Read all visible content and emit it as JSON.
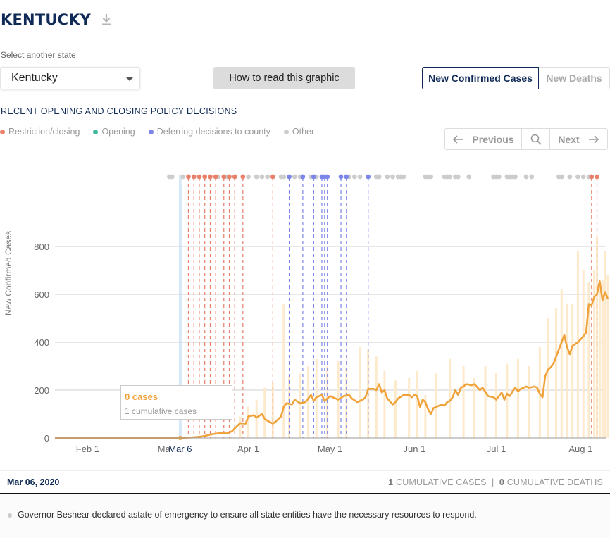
{
  "state": {
    "title": "KENTUCKY",
    "select_label": "Select another state",
    "selected": "Kentucky"
  },
  "how_to_read_label": "How to read this graphic",
  "metric_tabs": {
    "active": "New Confirmed Cases",
    "inactive": "New Deaths"
  },
  "policy": {
    "heading": "RECENT OPENING AND CLOSING POLICY DECISIONS",
    "legend": [
      {
        "label": "Restriction/closing",
        "color": "#e8806a"
      },
      {
        "label": "Opening",
        "color": "#3fb89a"
      },
      {
        "label": "Deferring decisions to county",
        "color": "#7c85e8"
      },
      {
        "label": "Other",
        "color": "#cccccc"
      }
    ]
  },
  "nav": {
    "previous": "Previous",
    "next": "Next"
  },
  "icons": {
    "download": "download-icon",
    "search": "search-icon",
    "prev": "arrow-left-icon",
    "next": "arrow-right-icon",
    "caret": "chevron-down-icon"
  },
  "colors": {
    "accent": "#0f2a56",
    "cases_line": "#f0a33b",
    "cases_bar": "#fde9cc",
    "highlight_band": "#d7e8f6"
  },
  "tooltip": {
    "value": "0 cases",
    "cumulative": "1 cumulative cases"
  },
  "selected_date": "Mar 06, 2020",
  "stats": {
    "cases_num": "1",
    "cases_label": "CUMULATIVE CASES",
    "deaths_num": "0",
    "deaths_label": "CUMULATIVE DEATHS"
  },
  "event": {
    "text": "Governor Beshear declared astate of emergency to ensure all state entities have the necessary resources to respond."
  },
  "chart_data": {
    "type": "line",
    "ylabel": "New Confirmed Cases",
    "ylim": [
      0,
      850
    ],
    "yticks": [
      0,
      200,
      400,
      600,
      800
    ],
    "xlim": [
      20,
      223
    ],
    "x_ticks": [
      {
        "day": 32,
        "label": "Feb 1"
      },
      {
        "day": 60,
        "label": "Ma"
      },
      {
        "day": 91,
        "label": "Apr 1"
      },
      {
        "day": 121,
        "label": "May 1"
      },
      {
        "day": 152,
        "label": "Jun 1"
      },
      {
        "day": 182,
        "label": "Jul 1"
      },
      {
        "day": 213,
        "label": "Aug 1"
      }
    ],
    "selected": {
      "day": 66,
      "label": "Mar 6"
    },
    "grid": true,
    "series": [
      {
        "smoothed": [
          [
            20,
            0
          ],
          [
            66,
            0
          ],
          [
            70,
            2
          ],
          [
            73,
            5
          ],
          [
            75,
            8
          ],
          [
            77,
            14
          ],
          [
            79,
            18
          ],
          [
            81,
            21
          ],
          [
            83,
            19
          ],
          [
            85,
            28
          ],
          [
            86,
            40
          ],
          [
            88,
            62
          ],
          [
            90,
            60
          ],
          [
            91,
            90
          ],
          [
            93,
            95
          ],
          [
            94,
            85
          ],
          [
            96,
            100
          ],
          [
            97,
            80
          ],
          [
            98,
            72
          ],
          [
            100,
            60
          ],
          [
            101,
            68
          ],
          [
            103,
            90
          ],
          [
            104,
            130
          ],
          [
            105,
            145
          ],
          [
            107,
            140
          ],
          [
            108,
            160
          ],
          [
            110,
            145
          ],
          [
            112,
            150
          ],
          [
            113,
            165
          ],
          [
            114,
            180
          ],
          [
            115,
            155
          ],
          [
            116,
            170
          ],
          [
            118,
            180
          ],
          [
            119,
            155
          ],
          [
            121,
            175
          ],
          [
            122,
            170
          ],
          [
            124,
            160
          ],
          [
            126,
            175
          ],
          [
            128,
            180
          ],
          [
            129,
            165
          ],
          [
            131,
            150
          ],
          [
            133,
            160
          ],
          [
            134,
            170
          ],
          [
            135,
            205
          ],
          [
            137,
            205
          ],
          [
            138,
            200
          ],
          [
            139,
            225
          ],
          [
            140,
            190
          ],
          [
            141,
            200
          ],
          [
            142,
            165
          ],
          [
            144,
            140
          ],
          [
            145,
            150
          ],
          [
            146,
            165
          ],
          [
            148,
            180
          ],
          [
            150,
            180
          ],
          [
            151,
            170
          ],
          [
            152,
            180
          ],
          [
            153,
            175
          ],
          [
            154,
            130
          ],
          [
            155,
            160
          ],
          [
            156,
            150
          ],
          [
            157,
            120
          ],
          [
            158,
            100
          ],
          [
            159,
            125
          ],
          [
            160,
            130
          ],
          [
            162,
            140
          ],
          [
            163,
            135
          ],
          [
            164,
            150
          ],
          [
            165,
            155
          ],
          [
            166,
            170
          ],
          [
            167,
            200
          ],
          [
            168,
            180
          ],
          [
            169,
            210
          ],
          [
            170,
            215
          ],
          [
            171,
            225
          ],
          [
            173,
            220
          ],
          [
            174,
            225
          ],
          [
            176,
            200
          ],
          [
            177,
            210
          ],
          [
            179,
            175
          ],
          [
            181,
            170
          ],
          [
            182,
            160
          ],
          [
            183,
            175
          ],
          [
            184,
            190
          ],
          [
            185,
            160
          ],
          [
            186,
            185
          ],
          [
            187,
            175
          ],
          [
            188,
            195
          ],
          [
            189,
            210
          ],
          [
            190,
            195
          ],
          [
            191,
            205
          ],
          [
            193,
            215
          ],
          [
            194,
            210
          ],
          [
            196,
            215
          ],
          [
            197,
            210
          ],
          [
            198,
            185
          ],
          [
            199,
            170
          ],
          [
            200,
            260
          ],
          [
            201,
            285
          ],
          [
            202,
            295
          ],
          [
            203,
            310
          ],
          [
            204,
            340
          ],
          [
            205,
            370
          ],
          [
            206,
            400
          ],
          [
            207,
            430
          ],
          [
            208,
            380
          ],
          [
            209,
            350
          ],
          [
            210,
            385
          ],
          [
            212,
            400
          ],
          [
            214,
            425
          ],
          [
            215,
            440
          ],
          [
            216,
            560
          ],
          [
            217,
            555
          ],
          [
            218,
            590
          ],
          [
            219,
            600
          ],
          [
            220,
            655
          ],
          [
            221,
            575
          ],
          [
            222,
            610
          ],
          [
            223,
            580
          ]
        ]
      }
    ],
    "daily_bars": [
      [
        88,
        90
      ],
      [
        91,
        130
      ],
      [
        94,
        160
      ],
      [
        97,
        210
      ],
      [
        100,
        230
      ],
      [
        104,
        560
      ],
      [
        106,
        260
      ],
      [
        110,
        270
      ],
      [
        113,
        300
      ],
      [
        116,
        330
      ],
      [
        120,
        300
      ],
      [
        124,
        320
      ],
      [
        127,
        290
      ],
      [
        132,
        380
      ],
      [
        135,
        370
      ],
      [
        138,
        340
      ],
      [
        141,
        280
      ],
      [
        145,
        240
      ],
      [
        150,
        250
      ],
      [
        153,
        280
      ],
      [
        156,
        180
      ],
      [
        160,
        270
      ],
      [
        165,
        330
      ],
      [
        170,
        300
      ],
      [
        174,
        250
      ],
      [
        178,
        300
      ],
      [
        182,
        270
      ],
      [
        186,
        310
      ],
      [
        190,
        330
      ],
      [
        194,
        300
      ],
      [
        198,
        380
      ],
      [
        201,
        500
      ],
      [
        204,
        540
      ],
      [
        206,
        620
      ],
      [
        208,
        560
      ],
      [
        210,
        560
      ],
      [
        212,
        780
      ],
      [
        214,
        700
      ],
      [
        216,
        650
      ],
      [
        218,
        700
      ],
      [
        219,
        840
      ],
      [
        220,
        620
      ],
      [
        221,
        660
      ],
      [
        222,
        780
      ],
      [
        223,
        680
      ]
    ],
    "policy_events": {
      "restriction": [
        69,
        71,
        73,
        75,
        77,
        79,
        82,
        84,
        86,
        89,
        100,
        217,
        219
      ],
      "deferring": [
        106,
        111,
        115,
        118,
        119,
        120,
        125,
        127,
        135
      ],
      "other": [
        62,
        63,
        67,
        75,
        80,
        83,
        91,
        94,
        96,
        98,
        103,
        104,
        108,
        110,
        114,
        116,
        128,
        130,
        132,
        138,
        139,
        142,
        144,
        146,
        147,
        148,
        156,
        157,
        158,
        163,
        164,
        165,
        167,
        168,
        172,
        181,
        182,
        183,
        186,
        187,
        188,
        189,
        193,
        195,
        205,
        206,
        209,
        212,
        214,
        216
      ]
    }
  }
}
